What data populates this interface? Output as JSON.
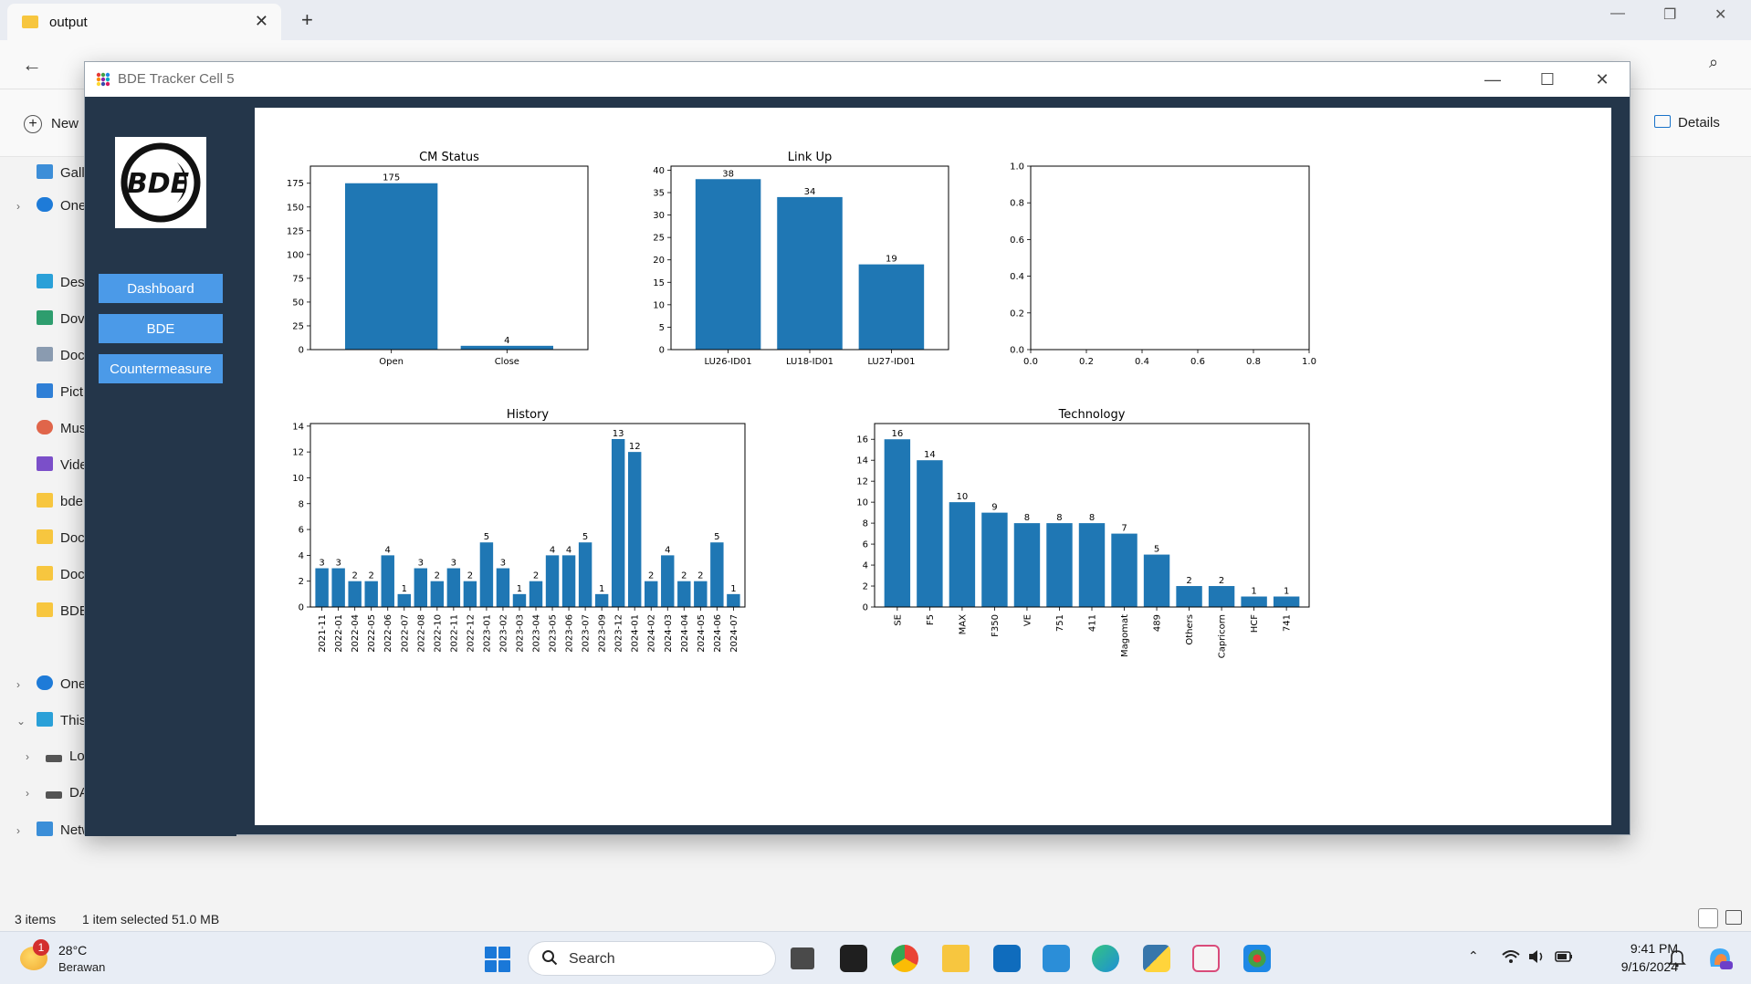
{
  "explorer": {
    "tab_title": "output",
    "new_label": "New",
    "details_label": "Details",
    "nav_items": [
      "Gall",
      "One",
      "Des",
      "Dov",
      "Doc",
      "Pict",
      "Mus",
      "Vide",
      "bde",
      "Doc",
      "Doc",
      "BDE",
      "One",
      "This",
      "Lo",
      "DA",
      "Netw"
    ],
    "status_items": "3 items",
    "status_selected": "1 item selected  51.0 MB"
  },
  "app": {
    "title": "BDE Tracker Cell 5",
    "logo_text": "BDE",
    "sidebar": {
      "dashboard": "Dashboard",
      "bde": "BDE",
      "countermeasure": "Countermeasure"
    }
  },
  "chart_data": [
    {
      "id": "cm_status",
      "type": "bar",
      "title": "CM Status",
      "categories": [
        "Open",
        "Close"
      ],
      "values": [
        175,
        4
      ],
      "ylim": [
        0,
        193
      ],
      "yticks": [
        0,
        25,
        50,
        75,
        100,
        125,
        150,
        175
      ],
      "data_labels": true,
      "color": "#1f77b4"
    },
    {
      "id": "link_up",
      "type": "bar",
      "title": "Link Up",
      "categories": [
        "LU26-ID01",
        "LU18-ID01",
        "LU27-ID01"
      ],
      "values": [
        38,
        34,
        19
      ],
      "ylim": [
        0,
        40.9
      ],
      "yticks": [
        0,
        5,
        10,
        15,
        20,
        25,
        30,
        35,
        40
      ],
      "data_labels": true,
      "color": "#1f77b4"
    },
    {
      "id": "empty",
      "type": "scatter",
      "title": "",
      "values": [],
      "xlim": [
        0,
        1
      ],
      "ylim": [
        0,
        1
      ],
      "xticks": [
        "0.0",
        "0.2",
        "0.4",
        "0.6",
        "0.8",
        "1.0"
      ],
      "yticks": [
        "0.0",
        "0.2",
        "0.4",
        "0.6",
        "0.8",
        "1.0"
      ]
    },
    {
      "id": "history",
      "type": "bar",
      "title": "History",
      "categories": [
        "2021-11",
        "2022-01",
        "2022-04",
        "2022-05",
        "2022-06",
        "2022-07",
        "2022-08",
        "2022-10",
        "2022-11",
        "2022-12",
        "2023-01",
        "2023-02",
        "2023-03",
        "2023-04",
        "2023-05",
        "2023-06",
        "2023-07",
        "2023-09",
        "2023-12",
        "2024-01",
        "2024-02",
        "2024-03",
        "2024-04",
        "2024-05",
        "2024-06",
        "2024-07"
      ],
      "values": [
        3,
        3,
        2,
        2,
        4,
        1,
        3,
        2,
        3,
        2,
        5,
        3,
        1,
        2,
        4,
        4,
        5,
        1,
        13,
        12,
        2,
        4,
        2,
        2,
        5,
        1
      ],
      "ylim": [
        0,
        14.2
      ],
      "yticks": [
        0,
        2,
        4,
        6,
        8,
        10,
        12,
        14
      ],
      "data_labels": true,
      "rotate_xlabels": true,
      "color": "#1f77b4"
    },
    {
      "id": "technology",
      "type": "bar",
      "title": "Technology",
      "categories": [
        "SE",
        "F5",
        "MAX",
        "F350",
        "VE",
        "751",
        "411",
        "Magomat",
        "489",
        "Others",
        "Capricorn",
        "HCF",
        "741"
      ],
      "values": [
        16,
        14,
        10,
        9,
        8,
        8,
        8,
        7,
        5,
        2,
        2,
        1,
        1
      ],
      "ylim": [
        0,
        17.5
      ],
      "yticks": [
        0,
        2,
        4,
        6,
        8,
        10,
        12,
        14,
        16
      ],
      "data_labels": true,
      "rotate_xlabels": true,
      "color": "#1f77b4"
    }
  ],
  "taskbar": {
    "weather_badge": "1",
    "temperature": "28°C",
    "condition": "Berawan",
    "search_label": "Search",
    "time": "9:41 PM",
    "date": "9/16/2024"
  }
}
